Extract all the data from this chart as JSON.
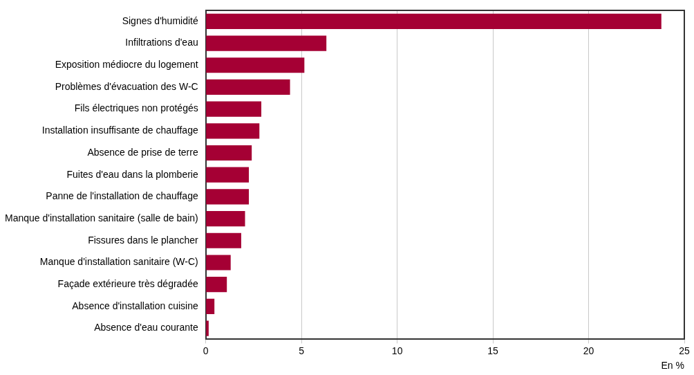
{
  "chart_data": {
    "type": "bar",
    "orientation": "horizontal",
    "xlabel": "En %",
    "categories": [
      "Signes d'humidité",
      "Infiltrations d'eau",
      "Exposition médiocre du logement",
      "Problèmes d'évacuation des W-C",
      "Fils électriques non protégés",
      "Installation insuffisante de chauffage",
      "Absence de prise de terre",
      "Fuites d'eau dans la plomberie",
      "Panne de l'installation de chauffage",
      "Manque d'installation sanitaire (salle de bain)",
      "Fissures dans le plancher",
      "Manque d'installation sanitaire (W-C)",
      "Façade extérieure très dégradée",
      "Absence d'installation cuisine",
      "Absence d'eau courante"
    ],
    "values": [
      23.8,
      6.3,
      5.15,
      4.4,
      2.9,
      2.8,
      2.4,
      2.25,
      2.25,
      2.05,
      1.85,
      1.3,
      1.1,
      0.45,
      0.15
    ],
    "color": "#a50034",
    "xlim": [
      0,
      25
    ],
    "xticks": [
      0,
      5,
      10,
      15,
      20,
      25
    ],
    "grid": "x",
    "legend": false
  }
}
